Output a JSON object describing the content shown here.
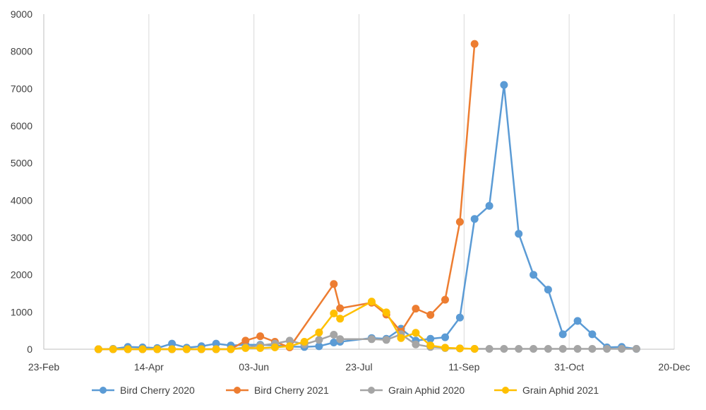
{
  "chart_data": {
    "type": "line",
    "title": "",
    "xlabel": "",
    "ylabel": "",
    "x_axis": {
      "type": "date",
      "min": "2021-02-23",
      "max": "2021-12-20",
      "tick_labels": [
        "23-Feb",
        "14-Apr",
        "03-Jun",
        "23-Jul",
        "11-Sep",
        "31-Oct",
        "20-Dec"
      ]
    },
    "y_axis": {
      "min": 0,
      "max": 9000,
      "tick_labels": [
        "0",
        "1000",
        "2000",
        "3000",
        "4000",
        "5000",
        "6000",
        "7000",
        "8000",
        "9000"
      ]
    },
    "grid": {
      "vertical": true,
      "horizontal": false
    },
    "legend_position": "bottom",
    "series": [
      {
        "name": "Bird Cherry 2020",
        "color": "#5B9BD5",
        "points": [
          [
            "2021-03-21",
            0
          ],
          [
            "2021-03-28",
            10
          ],
          [
            "2021-04-04",
            60
          ],
          [
            "2021-04-11",
            50
          ],
          [
            "2021-04-18",
            30
          ],
          [
            "2021-04-25",
            150
          ],
          [
            "2021-05-02",
            40
          ],
          [
            "2021-05-09",
            80
          ],
          [
            "2021-05-16",
            150
          ],
          [
            "2021-05-23",
            100
          ],
          [
            "2021-05-30",
            120
          ],
          [
            "2021-06-06",
            120
          ],
          [
            "2021-06-13",
            100
          ],
          [
            "2021-06-20",
            70
          ],
          [
            "2021-06-27",
            60
          ],
          [
            "2021-07-04",
            80
          ],
          [
            "2021-07-11",
            180
          ],
          [
            "2021-07-14",
            200
          ],
          [
            "2021-07-29",
            300
          ],
          [
            "2021-08-05",
            280
          ],
          [
            "2021-08-12",
            550
          ],
          [
            "2021-08-19",
            230
          ],
          [
            "2021-08-26",
            280
          ],
          [
            "2021-09-02",
            320
          ],
          [
            "2021-09-09",
            850
          ],
          [
            "2021-09-16",
            3500
          ],
          [
            "2021-09-23",
            3850
          ],
          [
            "2021-09-30",
            7100
          ],
          [
            "2021-10-07",
            3100
          ],
          [
            "2021-10-14",
            2000
          ],
          [
            "2021-10-21",
            1600
          ],
          [
            "2021-10-28",
            400
          ],
          [
            "2021-11-04",
            760
          ],
          [
            "2021-11-11",
            400
          ],
          [
            "2021-11-18",
            50
          ],
          [
            "2021-11-25",
            60
          ],
          [
            "2021-12-02",
            10
          ]
        ]
      },
      {
        "name": "Bird Cherry 2021",
        "color": "#ED7D31",
        "points": [
          [
            "2021-03-21",
            0
          ],
          [
            "2021-03-28",
            0
          ],
          [
            "2021-04-04",
            0
          ],
          [
            "2021-04-11",
            0
          ],
          [
            "2021-04-18",
            0
          ],
          [
            "2021-04-25",
            0
          ],
          [
            "2021-05-02",
            0
          ],
          [
            "2021-05-09",
            0
          ],
          [
            "2021-05-16",
            0
          ],
          [
            "2021-05-23",
            0
          ],
          [
            "2021-05-30",
            230
          ],
          [
            "2021-06-06",
            350
          ],
          [
            "2021-06-13",
            200
          ],
          [
            "2021-06-20",
            50
          ],
          [
            "2021-07-11",
            1750
          ],
          [
            "2021-07-14",
            1100
          ],
          [
            "2021-07-29",
            1250
          ],
          [
            "2021-08-05",
            930
          ],
          [
            "2021-08-12",
            470
          ],
          [
            "2021-08-19",
            1090
          ],
          [
            "2021-08-26",
            920
          ],
          [
            "2021-09-02",
            1330
          ],
          [
            "2021-09-09",
            3420
          ],
          [
            "2021-09-16",
            8200
          ]
        ]
      },
      {
        "name": "Grain Aphid 2020",
        "color": "#A5A5A5",
        "points": [
          [
            "2021-03-21",
            0
          ],
          [
            "2021-03-28",
            0
          ],
          [
            "2021-04-04",
            0
          ],
          [
            "2021-04-11",
            0
          ],
          [
            "2021-04-18",
            0
          ],
          [
            "2021-04-25",
            0
          ],
          [
            "2021-05-02",
            0
          ],
          [
            "2021-05-09",
            0
          ],
          [
            "2021-05-16",
            0
          ],
          [
            "2021-05-23",
            0
          ],
          [
            "2021-05-30",
            50
          ],
          [
            "2021-06-06",
            100
          ],
          [
            "2021-06-13",
            150
          ],
          [
            "2021-06-20",
            230
          ],
          [
            "2021-06-27",
            130
          ],
          [
            "2021-07-04",
            250
          ],
          [
            "2021-07-11",
            390
          ],
          [
            "2021-07-14",
            270
          ],
          [
            "2021-07-29",
            270
          ],
          [
            "2021-08-05",
            250
          ],
          [
            "2021-08-12",
            400
          ],
          [
            "2021-08-19",
            130
          ],
          [
            "2021-08-26",
            60
          ],
          [
            "2021-09-02",
            30
          ],
          [
            "2021-09-09",
            20
          ],
          [
            "2021-09-16",
            10
          ],
          [
            "2021-09-23",
            10
          ],
          [
            "2021-09-30",
            10
          ],
          [
            "2021-10-07",
            10
          ],
          [
            "2021-10-14",
            10
          ],
          [
            "2021-10-21",
            10
          ],
          [
            "2021-10-28",
            10
          ],
          [
            "2021-11-04",
            10
          ],
          [
            "2021-11-11",
            10
          ],
          [
            "2021-11-18",
            10
          ],
          [
            "2021-11-25",
            10
          ],
          [
            "2021-12-02",
            10
          ]
        ]
      },
      {
        "name": "Grain Aphid 2021",
        "color": "#FFC000",
        "points": [
          [
            "2021-03-21",
            0
          ],
          [
            "2021-03-28",
            0
          ],
          [
            "2021-04-04",
            0
          ],
          [
            "2021-04-11",
            0
          ],
          [
            "2021-04-18",
            0
          ],
          [
            "2021-04-25",
            0
          ],
          [
            "2021-05-02",
            0
          ],
          [
            "2021-05-09",
            0
          ],
          [
            "2021-05-16",
            0
          ],
          [
            "2021-05-23",
            0
          ],
          [
            "2021-05-30",
            30
          ],
          [
            "2021-06-06",
            30
          ],
          [
            "2021-06-13",
            50
          ],
          [
            "2021-06-20",
            80
          ],
          [
            "2021-06-27",
            200
          ],
          [
            "2021-07-04",
            450
          ],
          [
            "2021-07-11",
            960
          ],
          [
            "2021-07-14",
            820
          ],
          [
            "2021-07-29",
            1280
          ],
          [
            "2021-08-05",
            990
          ],
          [
            "2021-08-12",
            300
          ],
          [
            "2021-08-19",
            440
          ],
          [
            "2021-08-26",
            100
          ],
          [
            "2021-09-02",
            40
          ],
          [
            "2021-09-09",
            20
          ],
          [
            "2021-09-16",
            10
          ]
        ]
      }
    ]
  }
}
